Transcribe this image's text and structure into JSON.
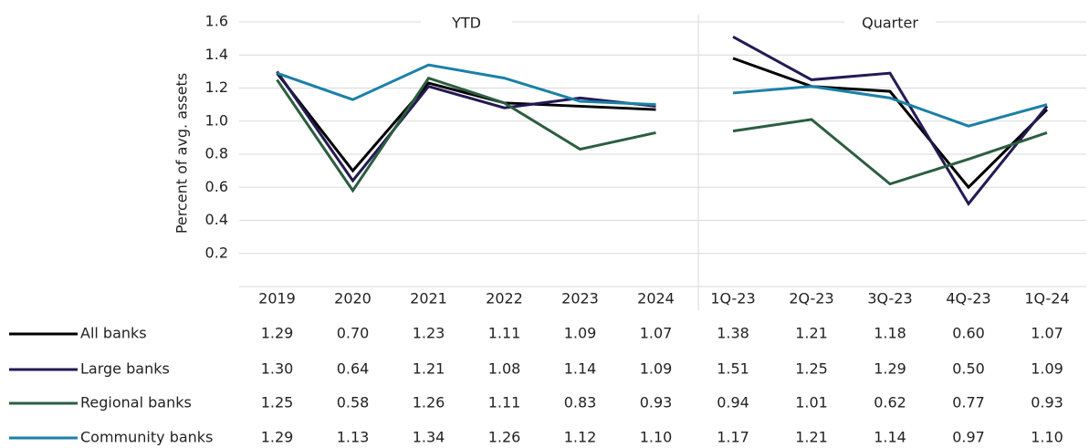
{
  "chart_data": {
    "type": "line",
    "ylabel": "Percent of avg. assets",
    "ylim": [
      0,
      1.6
    ],
    "yticks": [
      0.2,
      0.4,
      0.6,
      0.8,
      {
        "value": 1,
        "label": "1.0"
      },
      1.2,
      1.4,
      1.6
    ],
    "grid": true,
    "panels": [
      {
        "title": "YTD",
        "categories": [
          "2019",
          "2020",
          "2021",
          "2022",
          "2023",
          "2024"
        ]
      },
      {
        "title": "Quarter",
        "categories": [
          "1Q-23",
          "2Q-23",
          "3Q-23",
          "4Q-23",
          "1Q-24"
        ]
      }
    ],
    "series": [
      {
        "name": "All banks",
        "color": "#000000",
        "values": [
          1.29,
          0.7,
          1.23,
          1.11,
          1.09,
          1.07,
          1.38,
          1.21,
          1.18,
          0.6,
          1.07
        ],
        "value_labels": [
          "1.29",
          "0.70",
          "1.23",
          "1.11",
          "1.09",
          "1.07",
          "1.38",
          "1.21",
          "1.18",
          "0.60",
          "1.07"
        ]
      },
      {
        "name": "Large banks",
        "color": "#231a55",
        "values": [
          1.3,
          0.64,
          1.21,
          1.08,
          1.14,
          1.09,
          1.51,
          1.25,
          1.29,
          0.5,
          1.09
        ],
        "value_labels": [
          "1.30",
          "0.64",
          "1.21",
          "1.08",
          "1.14",
          "1.09",
          "1.51",
          "1.25",
          "1.29",
          "0.50",
          "1.09"
        ]
      },
      {
        "name": "Regional banks",
        "color": "#2b5e3f",
        "values": [
          1.25,
          0.58,
          1.26,
          1.11,
          0.83,
          0.93,
          0.94,
          1.01,
          0.62,
          0.77,
          0.93
        ],
        "value_labels": [
          "1.25",
          "0.58",
          "1.26",
          "1.11",
          "0.83",
          "0.93",
          "0.94",
          "1.01",
          "0.62",
          "0.77",
          "0.93"
        ]
      },
      {
        "name": "Community banks",
        "color": "#1b80a8",
        "values": [
          1.29,
          1.13,
          1.34,
          1.26,
          1.12,
          1.1,
          1.17,
          1.21,
          1.14,
          0.97,
          1.1
        ],
        "value_labels": [
          "1.29",
          "1.13",
          "1.34",
          "1.26",
          "1.12",
          "1.10",
          "1.17",
          "1.21",
          "1.14",
          "0.97",
          "1.10"
        ]
      }
    ]
  }
}
